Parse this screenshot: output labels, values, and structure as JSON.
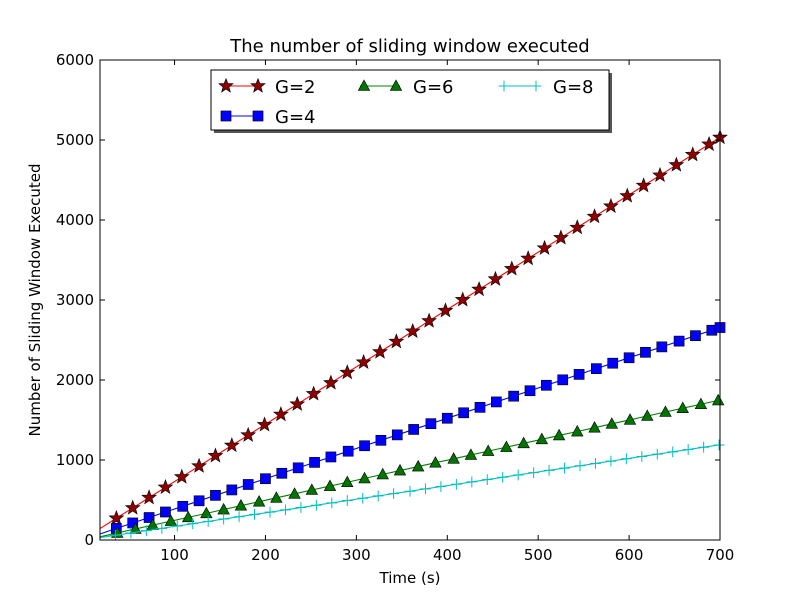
{
  "chart_data": {
    "type": "line",
    "title": "The number of sliding window executed",
    "xlabel": "Time (s)",
    "ylabel": "Number of Sliding Window Executed",
    "xlim": [
      18,
      700
    ],
    "ylim": [
      0,
      6000
    ],
    "xticks": [
      100,
      200,
      300,
      400,
      500,
      600,
      700
    ],
    "yticks": [
      0,
      1000,
      2000,
      3000,
      4000,
      5000,
      6000
    ],
    "grid": false,
    "legend_position": "top-center",
    "series": [
      {
        "name": "G=2",
        "color": "#ff0000",
        "marker": "star",
        "marker_color": "#8b0000",
        "line_from": [
          18,
          143
        ],
        "x": [
          36,
          54,
          72,
          90,
          108,
          127,
          145,
          163,
          181,
          199,
          217,
          235,
          253,
          272,
          290,
          308,
          326,
          344,
          362,
          380,
          398,
          417,
          435,
          453,
          471,
          489,
          507,
          525,
          543,
          562,
          580,
          598,
          616,
          634,
          652,
          670,
          688,
          700
        ],
        "y": [
          272,
          401,
          530,
          659,
          788,
          924,
          1053,
          1182,
          1311,
          1440,
          1569,
          1698,
          1827,
          1964,
          2093,
          2222,
          2351,
          2480,
          2609,
          2738,
          2867,
          3003,
          3132,
          3261,
          3390,
          3519,
          3648,
          3777,
          3906,
          4043,
          4172,
          4301,
          4430,
          4559,
          4688,
          4817,
          4946,
          5032
        ]
      },
      {
        "name": "G=4",
        "color": "#0000ff",
        "marker": "square",
        "marker_color": "#0000ff",
        "line_from": [
          18,
          75
        ],
        "x": [
          36,
          54,
          72,
          90,
          109,
          127,
          145,
          163,
          181,
          200,
          218,
          236,
          254,
          272,
          291,
          309,
          327,
          345,
          363,
          382,
          400,
          418,
          436,
          454,
          473,
          491,
          509,
          527,
          545,
          564,
          582,
          600,
          618,
          636,
          655,
          673,
          691,
          700
        ],
        "y": [
          145,
          213,
          281,
          350,
          421,
          490,
          558,
          626,
          694,
          766,
          834,
          902,
          970,
          1038,
          1110,
          1178,
          1246,
          1314,
          1382,
          1454,
          1522,
          1590,
          1658,
          1726,
          1798,
          1866,
          1934,
          2002,
          2070,
          2142,
          2210,
          2278,
          2346,
          2414,
          2486,
          2554,
          2622,
          2656
        ]
      },
      {
        "name": "G=6",
        "color": "#008000",
        "marker": "triangle",
        "marker_color": "#007300",
        "line_from": [
          18,
          40
        ],
        "x": [
          37,
          57,
          76,
          96,
          115,
          135,
          154,
          173,
          193,
          212,
          232,
          251,
          271,
          290,
          309,
          329,
          348,
          368,
          387,
          407,
          426,
          445,
          465,
          484,
          504,
          523,
          543,
          562,
          581,
          601,
          620,
          640,
          659,
          679,
          698
        ],
        "y": [
          88,
          138,
          186,
          236,
          283,
          333,
          381,
          429,
          479,
          527,
          577,
          625,
          674,
          722,
          770,
          820,
          868,
          918,
          966,
          1015,
          1063,
          1111,
          1161,
          1209,
          1259,
          1307,
          1356,
          1404,
          1452,
          1502,
          1550,
          1600,
          1648,
          1697,
          1745
        ]
      },
      {
        "name": "G=8",
        "color": "#00bfbf",
        "marker": "plus",
        "marker_color": "#00bfbf",
        "line_from": [
          18,
          30
        ],
        "x": [
          35,
          52,
          69,
          86,
          103,
          120,
          137,
          154,
          171,
          188,
          205,
          222,
          239,
          256,
          273,
          290,
          307,
          324,
          341,
          359,
          376,
          393,
          410,
          427,
          444,
          461,
          478,
          495,
          512,
          529,
          546,
          563,
          580,
          597,
          614,
          631,
          648,
          665,
          682,
          699
        ],
        "y": [
          59,
          88,
          117,
          146,
          175,
          204,
          233,
          262,
          291,
          320,
          348,
          377,
          406,
          435,
          464,
          493,
          522,
          551,
          580,
          610,
          639,
          668,
          697,
          726,
          755,
          784,
          813,
          842,
          871,
          899,
          928,
          957,
          986,
          1015,
          1044,
          1073,
          1102,
          1131,
          1160,
          1188
        ]
      }
    ]
  }
}
